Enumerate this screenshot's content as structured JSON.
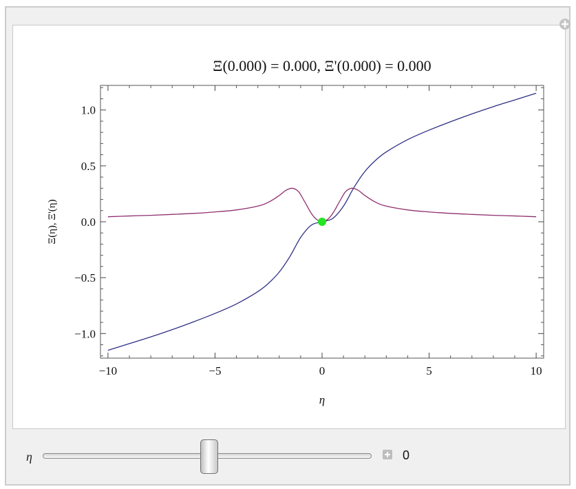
{
  "chart_data": {
    "type": "line",
    "title": "Ξ(0.000) = 0.000, Ξ'(0.000) = 0.000",
    "xlabel": "η",
    "ylabel": "Ξ(η), Ξ'(η)",
    "xlim": [
      -10,
      10
    ],
    "ylim": [
      -1.22,
      1.22
    ],
    "xticks": [
      -10,
      -5,
      0,
      5,
      10
    ],
    "xtick_labels": [
      "−10",
      "−5",
      "0",
      "5",
      "10"
    ],
    "yticks": [
      -1.0,
      -0.5,
      0.0,
      0.5,
      1.0
    ],
    "ytick_labels": [
      "−1.0",
      "−0.5",
      "0.0",
      "0.5",
      "1.0"
    ],
    "grid": false,
    "series": [
      {
        "color": "#2e2e85",
        "x": [
          -10,
          -9,
          -8,
          -7,
          -6,
          -5,
          -4,
          -3,
          -2.5,
          -2,
          -1.5,
          -1,
          -0.5,
          0,
          0.5,
          1,
          1.5,
          2,
          2.5,
          3,
          4,
          5,
          6,
          7,
          8,
          9,
          10
        ],
        "y": [
          -1.15,
          -1.09,
          -1.03,
          -0.965,
          -0.895,
          -0.82,
          -0.735,
          -0.625,
          -0.55,
          -0.45,
          -0.31,
          -0.14,
          -0.03,
          0.0,
          0.03,
          0.14,
          0.31,
          0.45,
          0.55,
          0.625,
          0.735,
          0.82,
          0.895,
          0.965,
          1.03,
          1.09,
          1.15
        ]
      },
      {
        "color": "#8e2e6e",
        "x": [
          -10,
          -9,
          -8,
          -7,
          -6,
          -5,
          -4,
          -3,
          -2.5,
          -2,
          -1.7,
          -1.4,
          -1.1,
          -0.8,
          -0.5,
          -0.25,
          0,
          0.25,
          0.5,
          0.8,
          1.1,
          1.4,
          1.7,
          2,
          2.5,
          3,
          4,
          5,
          6,
          7,
          8,
          9,
          10
        ],
        "y": [
          0.045,
          0.052,
          0.058,
          0.066,
          0.075,
          0.088,
          0.106,
          0.14,
          0.175,
          0.235,
          0.28,
          0.3,
          0.27,
          0.175,
          0.075,
          0.02,
          0.0,
          0.02,
          0.075,
          0.175,
          0.27,
          0.3,
          0.28,
          0.235,
          0.175,
          0.14,
          0.106,
          0.088,
          0.075,
          0.066,
          0.058,
          0.052,
          0.045
        ]
      }
    ],
    "marker": {
      "x": 0.0,
      "y": 0.0,
      "color": "#22e622"
    }
  },
  "control": {
    "label": "η",
    "value_text": "0",
    "min": -10,
    "max": 10,
    "value": 0
  }
}
